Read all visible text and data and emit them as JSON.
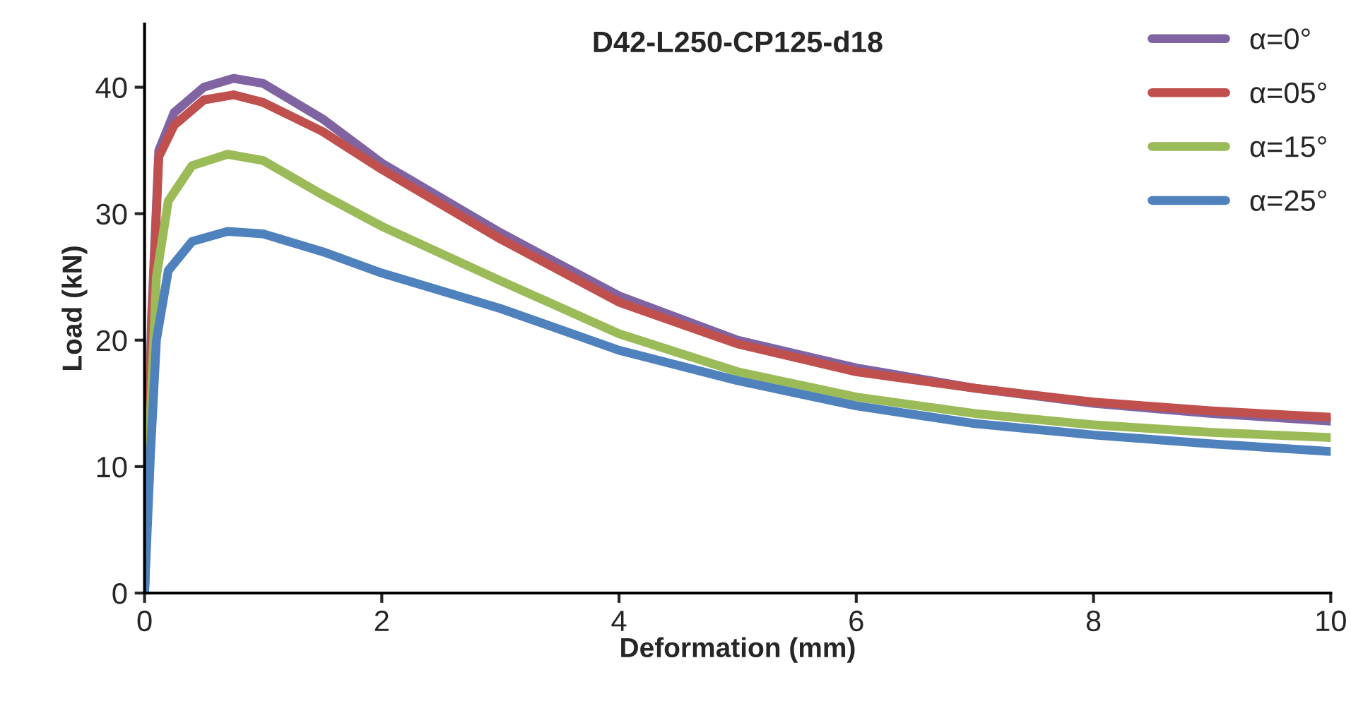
{
  "chart_data": {
    "type": "line",
    "title": "D42-L250-CP125-d18",
    "xlabel": "Deformation (mm)",
    "ylabel": "Load (kN)",
    "xlim": [
      0,
      10
    ],
    "ylim": [
      0,
      45
    ],
    "xticks": [
      0,
      2,
      4,
      6,
      8,
      10
    ],
    "yticks": [
      0,
      10,
      20,
      30,
      40
    ],
    "grid": false,
    "legend": "top right",
    "marker": "none",
    "line_style": "solid",
    "series": [
      {
        "name": "α=0°",
        "color": "#8064a2",
        "x": [
          0,
          0.06,
          0.12,
          0.25,
          0.5,
          0.75,
          1,
          1.5,
          2,
          3,
          4,
          5,
          6,
          7,
          8,
          9,
          10
        ],
        "values": [
          0,
          22,
          35,
          38,
          40,
          40.7,
          40.3,
          37.5,
          34,
          28.5,
          23.5,
          20,
          17.8,
          16.2,
          15,
          14.2,
          13.6
        ]
      },
      {
        "name": "α=05°",
        "color": "#c0504d",
        "x": [
          0,
          0.06,
          0.12,
          0.25,
          0.5,
          0.75,
          1,
          1.5,
          2,
          3,
          4,
          5,
          6,
          7,
          8,
          9,
          10
        ],
        "values": [
          0,
          21,
          34.5,
          37,
          39,
          39.4,
          38.8,
          36.5,
          33.5,
          28,
          23,
          19.7,
          17.5,
          16.2,
          15.1,
          14.4,
          13.9
        ]
      },
      {
        "name": "α=15°",
        "color": "#9bbb59",
        "x": [
          0,
          0.05,
          0.1,
          0.2,
          0.4,
          0.7,
          1,
          1.5,
          2,
          3,
          4,
          5,
          6,
          7,
          8,
          9,
          10
        ],
        "values": [
          0,
          14,
          25,
          31,
          33.8,
          34.7,
          34.2,
          31.5,
          29,
          24.7,
          20.5,
          17.5,
          15.5,
          14.2,
          13.3,
          12.7,
          12.3
        ]
      },
      {
        "name": "α=25°",
        "color": "#4f81bd",
        "x": [
          0,
          0.05,
          0.1,
          0.2,
          0.4,
          0.7,
          1,
          1.5,
          2,
          3,
          4,
          5,
          6,
          7,
          8,
          9,
          10
        ],
        "values": [
          0,
          11,
          20,
          25.5,
          27.8,
          28.6,
          28.4,
          27,
          25.3,
          22.5,
          19.2,
          16.8,
          14.8,
          13.4,
          12.5,
          11.8,
          11.2
        ]
      }
    ]
  }
}
